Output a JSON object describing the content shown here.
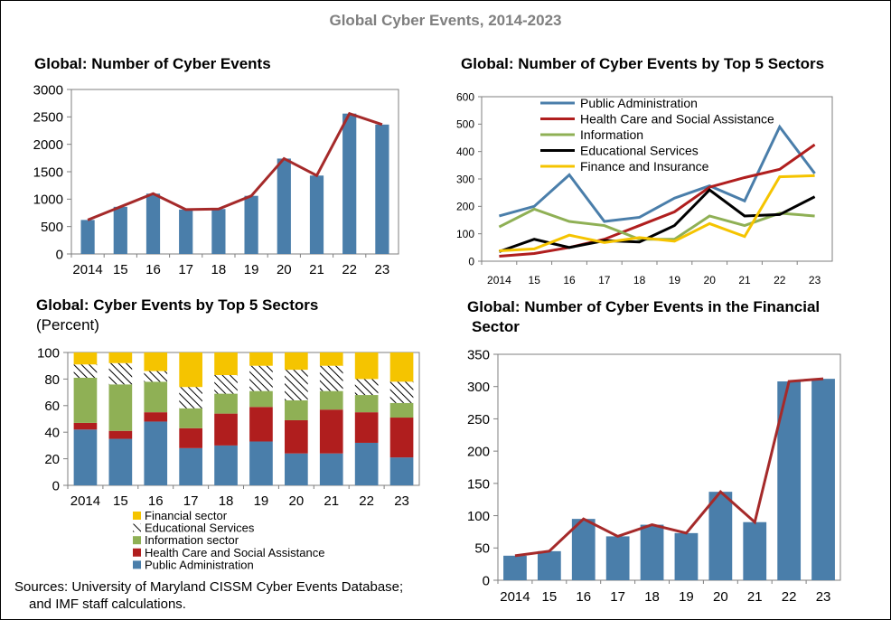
{
  "main_title": "Global Cyber Events, 2014-2023",
  "source": {
    "line1": "Sources: University of Maryland CISSM Cyber Events Database;",
    "line2": "and IMF staff calculations."
  },
  "colors": {
    "bar_blue": "#4a7eaa",
    "line_red": "#a52a2a",
    "public_admin": "#4a7eaa",
    "health_care": "#b01e1e",
    "information": "#8fb055",
    "educational": "#000000",
    "finance": "#f5c400",
    "info_line": "#8fb055",
    "finance_line": "#f5c400"
  },
  "chart_data": [
    {
      "id": "total",
      "type": "bar",
      "title": "Global: Number of Cyber Events",
      "categories": [
        "2014",
        "15",
        "16",
        "17",
        "18",
        "19",
        "20",
        "21",
        "22",
        "23"
      ],
      "values": [
        620,
        860,
        1100,
        810,
        820,
        1060,
        1740,
        1430,
        2560,
        2360
      ],
      "line_values": [
        620,
        860,
        1100,
        810,
        820,
        1060,
        1740,
        1430,
        2560,
        2360
      ],
      "ylim": [
        0,
        3000
      ],
      "yticks": [
        0,
        500,
        1000,
        1500,
        2000,
        2500,
        3000
      ]
    },
    {
      "id": "sectors",
      "type": "line",
      "title": "Global: Number of Cyber Events by Top 5 Sectors",
      "categories": [
        "2014",
        "15",
        "16",
        "17",
        "18",
        "19",
        "20",
        "21",
        "22",
        "23"
      ],
      "ylim": [
        0,
        600
      ],
      "yticks": [
        0,
        100,
        200,
        300,
        400,
        500,
        600
      ],
      "series": [
        {
          "name": "Public Administration",
          "color_key": "public_admin",
          "values": [
            165,
            200,
            315,
            145,
            160,
            230,
            275,
            220,
            490,
            320
          ]
        },
        {
          "name": "Health Care and Social Assistance",
          "color_key": "health_care",
          "values": [
            18,
            28,
            50,
            80,
            130,
            180,
            270,
            305,
            335,
            425
          ]
        },
        {
          "name": "Information",
          "color_key": "info_line",
          "values": [
            125,
            190,
            145,
            130,
            80,
            80,
            165,
            130,
            175,
            165
          ]
        },
        {
          "name": "Educational Services",
          "color_key": "educational",
          "values": [
            35,
            80,
            50,
            75,
            70,
            130,
            260,
            165,
            170,
            235
          ]
        },
        {
          "name": "Finance and Insurance",
          "color_key": "finance_line",
          "values": [
            38,
            45,
            95,
            68,
            86,
            73,
            137,
            90,
            308,
            312
          ]
        }
      ]
    },
    {
      "id": "shares",
      "type": "bar",
      "stacked": true,
      "title": "Global: Cyber Events by Top 5 Sectors",
      "subtitle": "(Percent)",
      "categories": [
        "2014",
        "15",
        "16",
        "17",
        "18",
        "19",
        "20",
        "21",
        "22",
        "23"
      ],
      "ylim": [
        0,
        100
      ],
      "yticks": [
        0,
        20,
        40,
        60,
        80,
        100
      ],
      "series": [
        {
          "name": "Public Administration",
          "color_key": "public_admin",
          "values": [
            42,
            35,
            48,
            28,
            30,
            33,
            24,
            24,
            32,
            21
          ]
        },
        {
          "name": "Health Care and Social Assistance",
          "color_key": "health_care",
          "values": [
            5,
            6,
            7,
            15,
            24,
            26,
            25,
            33,
            23,
            30
          ]
        },
        {
          "name": "Information sector",
          "color_key": "information",
          "values": [
            34,
            35,
            23,
            15,
            15,
            12,
            15,
            14,
            13,
            11
          ]
        },
        {
          "name": "Educational Services",
          "color_key": "educational",
          "pattern": true,
          "values": [
            10,
            16,
            8,
            16,
            14,
            19,
            23,
            19,
            12,
            16
          ]
        },
        {
          "name": "Financial sector",
          "color_key": "finance",
          "values": [
            9,
            8,
            14,
            26,
            17,
            10,
            13,
            10,
            20,
            22
          ]
        }
      ],
      "legend_order": [
        "Financial sector",
        "Educational Services",
        "Information sector",
        "Health Care and Social Assistance",
        "Public Administration"
      ]
    },
    {
      "id": "financial",
      "type": "bar",
      "title": "Global: Number of Cyber Events in the Financial Sector",
      "title_lines": [
        "Global: Number of Cyber Events in the Financial",
        "Sector"
      ],
      "categories": [
        "2014",
        "15",
        "16",
        "17",
        "18",
        "19",
        "20",
        "21",
        "22",
        "23"
      ],
      "values": [
        38,
        45,
        95,
        68,
        86,
        73,
        137,
        90,
        308,
        312
      ],
      "line_values": [
        38,
        45,
        95,
        68,
        86,
        73,
        137,
        90,
        308,
        312
      ],
      "ylim": [
        0,
        350
      ],
      "yticks": [
        0,
        50,
        100,
        150,
        200,
        250,
        300,
        350
      ]
    }
  ]
}
